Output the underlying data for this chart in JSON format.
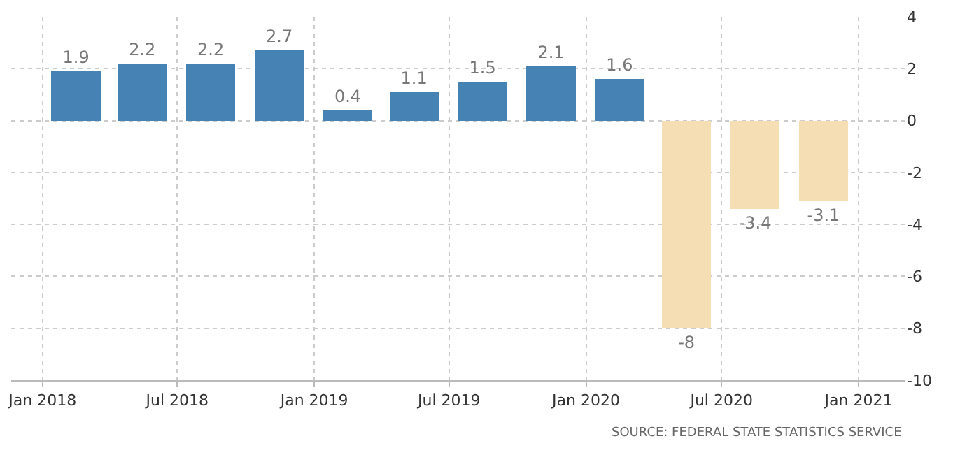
{
  "chart_data": {
    "type": "bar",
    "x": [
      "2018-02-15",
      "2018-05-15",
      "2018-08-15",
      "2018-11-15",
      "2019-02-15",
      "2019-05-15",
      "2019-08-15",
      "2019-11-15",
      "2020-02-15",
      "2020-05-15",
      "2020-08-15",
      "2020-11-15"
    ],
    "values": [
      1.9,
      2.2,
      2.2,
      2.7,
      0.4,
      1.1,
      1.5,
      2.1,
      1.6,
      -8,
      -3.4,
      -3.1
    ],
    "colors": [
      "#4682b4",
      "#4682b4",
      "#4682b4",
      "#4682b4",
      "#4682b4",
      "#4682b4",
      "#4682b4",
      "#4682b4",
      "#4682b4",
      "#f5deb3",
      "#f5deb3",
      "#f5deb3"
    ],
    "data_labels": true,
    "xlim": [
      "2017-11-20",
      "2021-03-05"
    ],
    "xticks": [
      {
        "value": "2018-01-01",
        "label": "Jan 2018"
      },
      {
        "value": "2018-07-01",
        "label": "Jul 2018"
      },
      {
        "value": "2019-01-01",
        "label": "Jan 2019"
      },
      {
        "value": "2019-07-01",
        "label": "Jul 2019"
      },
      {
        "value": "2020-01-01",
        "label": "Jan 2020"
      },
      {
        "value": "2020-07-01",
        "label": "Jul 2020"
      },
      {
        "value": "2021-01-01",
        "label": "Jan 2021"
      }
    ],
    "ylim": [
      -10,
      4
    ],
    "yticks": [
      -10,
      -8,
      -6,
      -4,
      -2,
      0,
      2,
      4
    ],
    "grid": true,
    "annotations": [
      "SOURCE: FEDERAL STATE STATISTICS SERVICE"
    ]
  }
}
